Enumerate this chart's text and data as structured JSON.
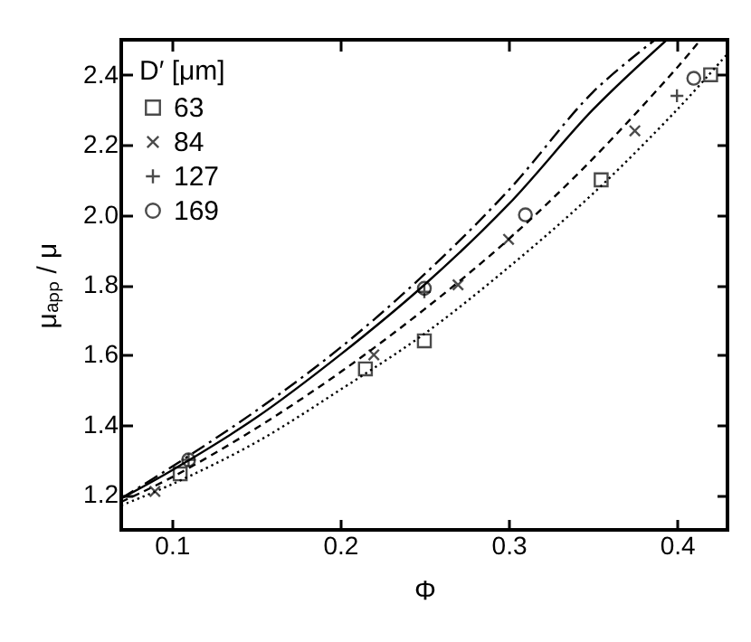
{
  "chart_data": {
    "type": "scatter",
    "xlabel": "Φ",
    "ylabel": "μₐₚₚ / μ",
    "legend_title": "D′ [μm]",
    "legend": "top left",
    "xlim": [
      0.07,
      0.43
    ],
    "ylim": [
      1.1,
      2.5
    ],
    "xticks": [
      0.1,
      0.2,
      0.3,
      0.4
    ],
    "yticks": [
      1.2,
      1.4,
      1.6,
      1.8,
      {
        "value": 2,
        "label": "2.0"
      },
      2.2,
      2.4
    ],
    "grid": false,
    "series": [
      {
        "name": "63",
        "marker": "square",
        "color": "#000000",
        "x": [
          0.105,
          0.215,
          0.25,
          0.355,
          0.42
        ],
        "values": [
          1.26,
          1.56,
          1.64,
          2.1,
          2.4
        ]
      },
      {
        "name": "84",
        "marker": "x",
        "color": "#000000",
        "x": [
          0.09,
          0.22,
          0.27,
          0.3,
          0.375
        ],
        "values": [
          1.21,
          1.6,
          1.8,
          1.93,
          2.24
        ]
      },
      {
        "name": "127",
        "marker": "cross",
        "color": "#000000",
        "x": [
          0.11,
          0.25,
          0.4
        ],
        "values": [
          1.3,
          1.78,
          2.34
        ]
      },
      {
        "name": "169",
        "marker": "circle",
        "color": "#000000",
        "x": [
          0.11,
          0.25,
          0.31,
          0.41
        ],
        "values": [
          1.3,
          1.79,
          2.0,
          2.39
        ]
      },
      {
        "type": "line",
        "line_style": "dotted",
        "color": "#000000",
        "x": [
          0.07,
          0.1,
          0.15,
          0.2,
          0.25,
          0.3,
          0.35,
          0.4,
          0.43
        ],
        "values": [
          1.17,
          1.23,
          1.35,
          1.5,
          1.66,
          1.85,
          2.06,
          2.3,
          2.46
        ]
      },
      {
        "type": "line",
        "line_style": "dashed",
        "color": "#000000",
        "x": [
          0.07,
          0.1,
          0.15,
          0.2,
          0.25,
          0.3,
          0.35,
          0.4,
          0.414
        ],
        "values": [
          1.18,
          1.25,
          1.39,
          1.55,
          1.73,
          1.93,
          2.16,
          2.42,
          2.5
        ]
      },
      {
        "type": "line",
        "line_style": "solid",
        "color": "#000000",
        "x": [
          0.07,
          0.1,
          0.15,
          0.2,
          0.25,
          0.3,
          0.35,
          0.394
        ],
        "values": [
          1.19,
          1.27,
          1.42,
          1.6,
          1.8,
          2.03,
          2.3,
          2.5
        ]
      },
      {
        "type": "line",
        "line_style": "dashdot",
        "color": "#000000",
        "x": [
          0.07,
          0.1,
          0.15,
          0.2,
          0.25,
          0.3,
          0.35,
          0.387
        ],
        "values": [
          1.19,
          1.28,
          1.44,
          1.62,
          1.83,
          2.07,
          2.35,
          2.5
        ]
      }
    ]
  }
}
